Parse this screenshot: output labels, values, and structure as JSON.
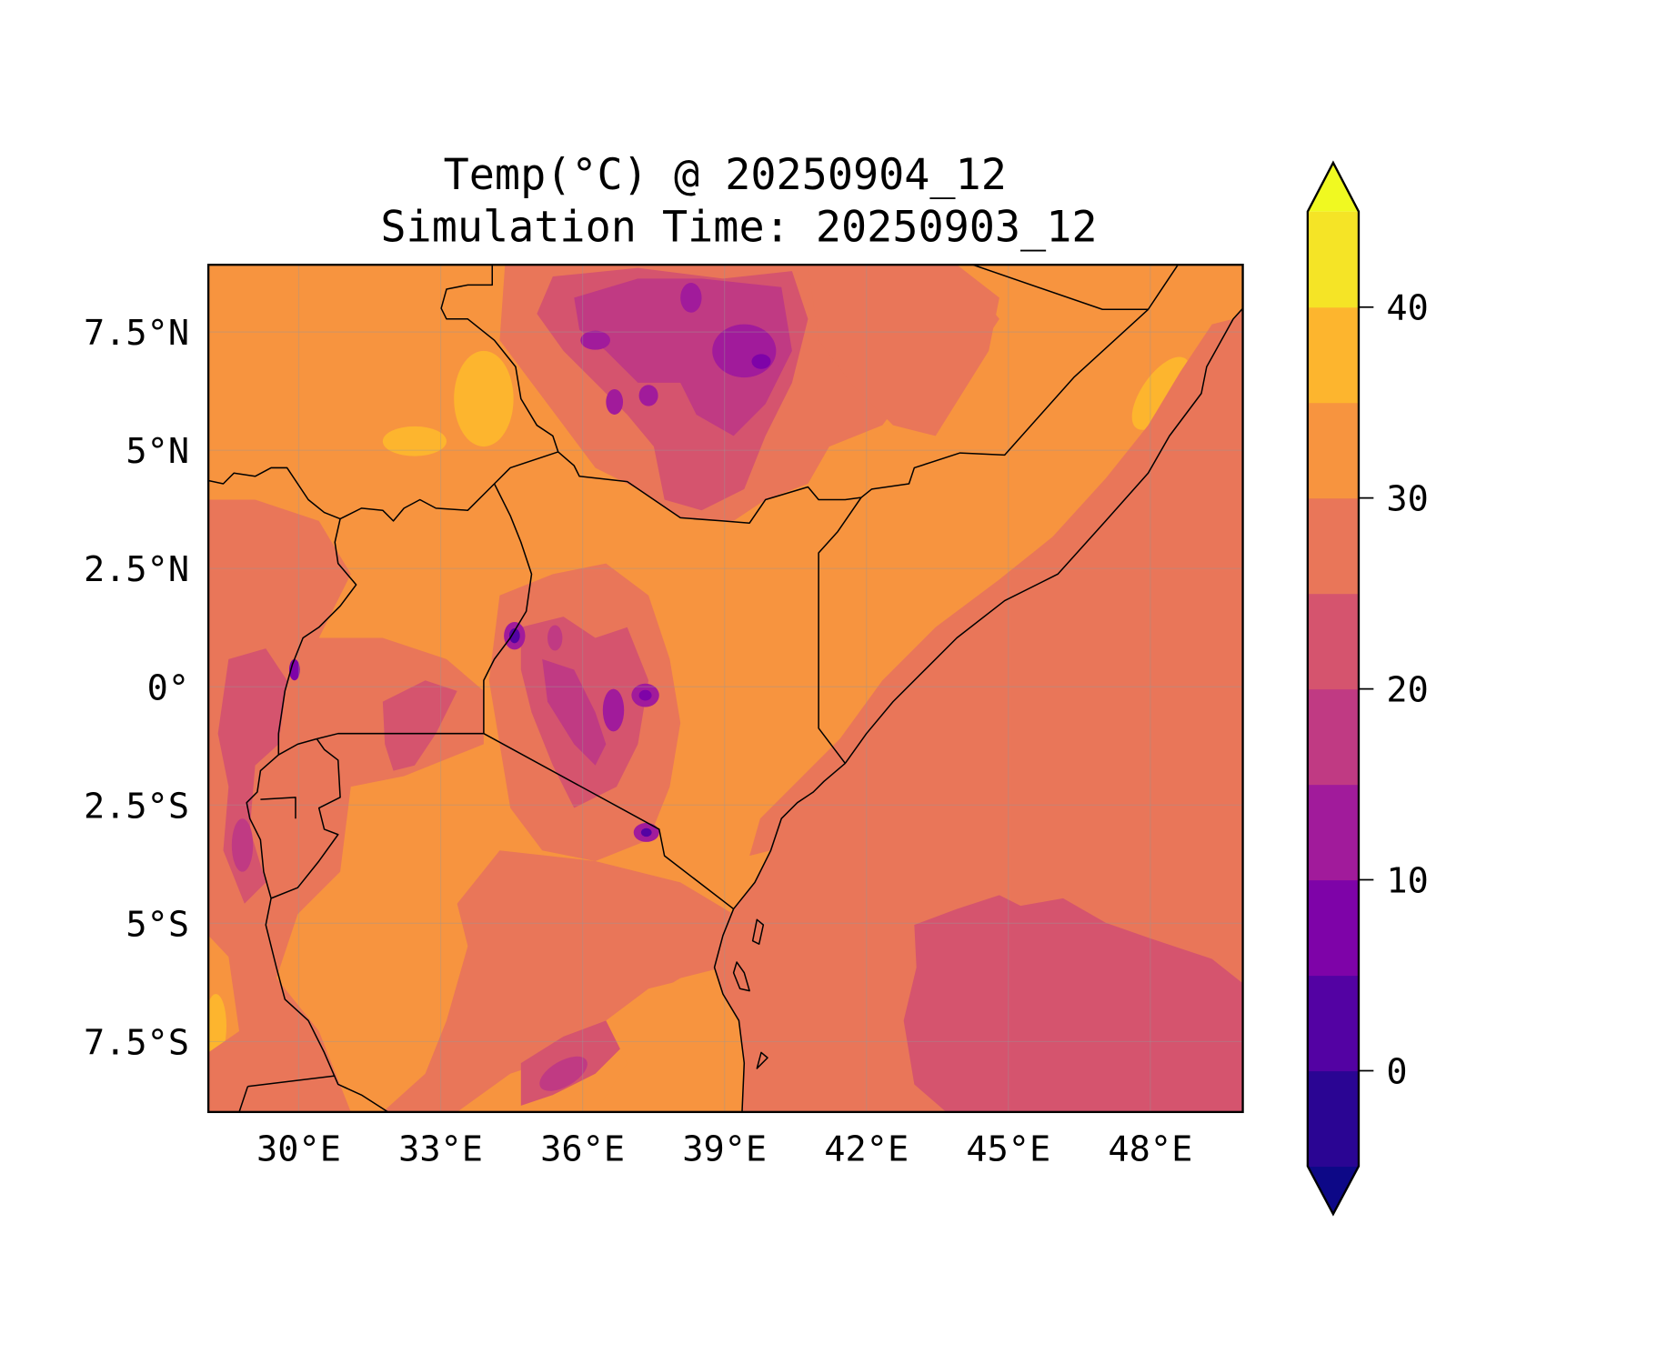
{
  "chart_data": {
    "type": "heatmap",
    "subtype": "filled-contour map",
    "title": "Temp(°C) @ 20250904_12",
    "subtitle": "Simulation Time: 20250903_12",
    "variable": "Temperature (°C)",
    "x_ticks": [
      {
        "value": 30,
        "label": "30°E"
      },
      {
        "value": 33,
        "label": "33°E"
      },
      {
        "value": 36,
        "label": "36°E"
      },
      {
        "value": 39,
        "label": "39°E"
      },
      {
        "value": 42,
        "label": "42°E"
      },
      {
        "value": 45,
        "label": "45°E"
      },
      {
        "value": 48,
        "label": "48°E"
      }
    ],
    "y_ticks": [
      {
        "value": 7.5,
        "label": "7.5°N"
      },
      {
        "value": 5,
        "label": "5°N"
      },
      {
        "value": 2.5,
        "label": "2.5°N"
      },
      {
        "value": 0,
        "label": "0°"
      },
      {
        "value": -2.5,
        "label": "2.5°S"
      },
      {
        "value": -5,
        "label": "5°S"
      },
      {
        "value": -7.5,
        "label": "7.5°S"
      }
    ],
    "xlim": [
      28.1,
      50.0
    ],
    "ylim": [
      -9.0,
      8.9
    ],
    "grid": true,
    "colorbar": {
      "levels": [
        -5,
        0,
        5,
        10,
        15,
        20,
        25,
        30,
        35,
        40,
        45
      ],
      "colors": [
        "#2a0593",
        "#5302a3",
        "#7e03a8",
        "#a11b9b",
        "#c03a83",
        "#d5546e",
        "#e97659",
        "#f7943f",
        "#fdb52e",
        "#f5e426"
      ],
      "extend_min_color": "#0d0887",
      "extend_max_color": "#f0f921",
      "ticks": [
        {
          "value": 0,
          "label": "0"
        },
        {
          "value": 10,
          "label": "10"
        },
        {
          "value": 20,
          "label": "20"
        },
        {
          "value": 30,
          "label": "30"
        },
        {
          "value": 40,
          "label": "40"
        }
      ],
      "placement": "right"
    }
  }
}
